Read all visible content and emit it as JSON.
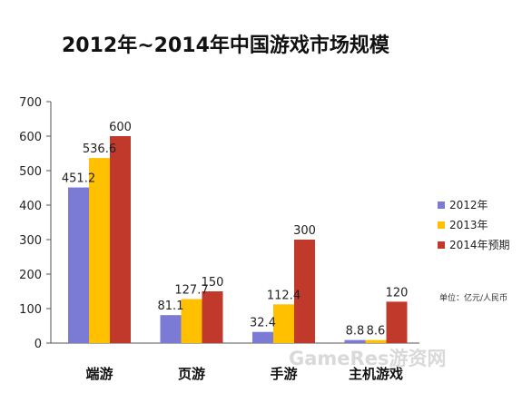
{
  "title": "2012年~2014年中国游戏市场规模",
  "unit_note": "单位：亿元/人民币",
  "watermark": "GameRes游资网",
  "chart_data": {
    "type": "bar",
    "title": "2012年~2014年中国游戏市场规模",
    "categories": [
      "端游",
      "页游",
      "手游",
      "主机游戏"
    ],
    "series": [
      {
        "name": "2012年",
        "values": [
          451.2,
          81.1,
          32.4,
          8.8
        ],
        "labels": [
          "451.2",
          "81.1",
          "32.4",
          "8.8"
        ],
        "color": "#7b7bd6"
      },
      {
        "name": "2013年",
        "values": [
          536.6,
          127.7,
          112.4,
          8.6
        ],
        "labels": [
          "536.6",
          "127.7",
          "112.4",
          "8.6"
        ],
        "color": "#ffc000"
      },
      {
        "name": "2014年预期",
        "values": [
          600,
          150,
          300,
          120
        ],
        "labels": [
          "600",
          "150",
          "300",
          "120"
        ],
        "color": "#c0392b"
      }
    ],
    "yticks": [
      0,
      100,
      200,
      300,
      400,
      500,
      600,
      700
    ],
    "ylim": [
      0,
      700
    ],
    "xlabel": "",
    "ylabel": "",
    "legend": "right",
    "grid": false
  }
}
